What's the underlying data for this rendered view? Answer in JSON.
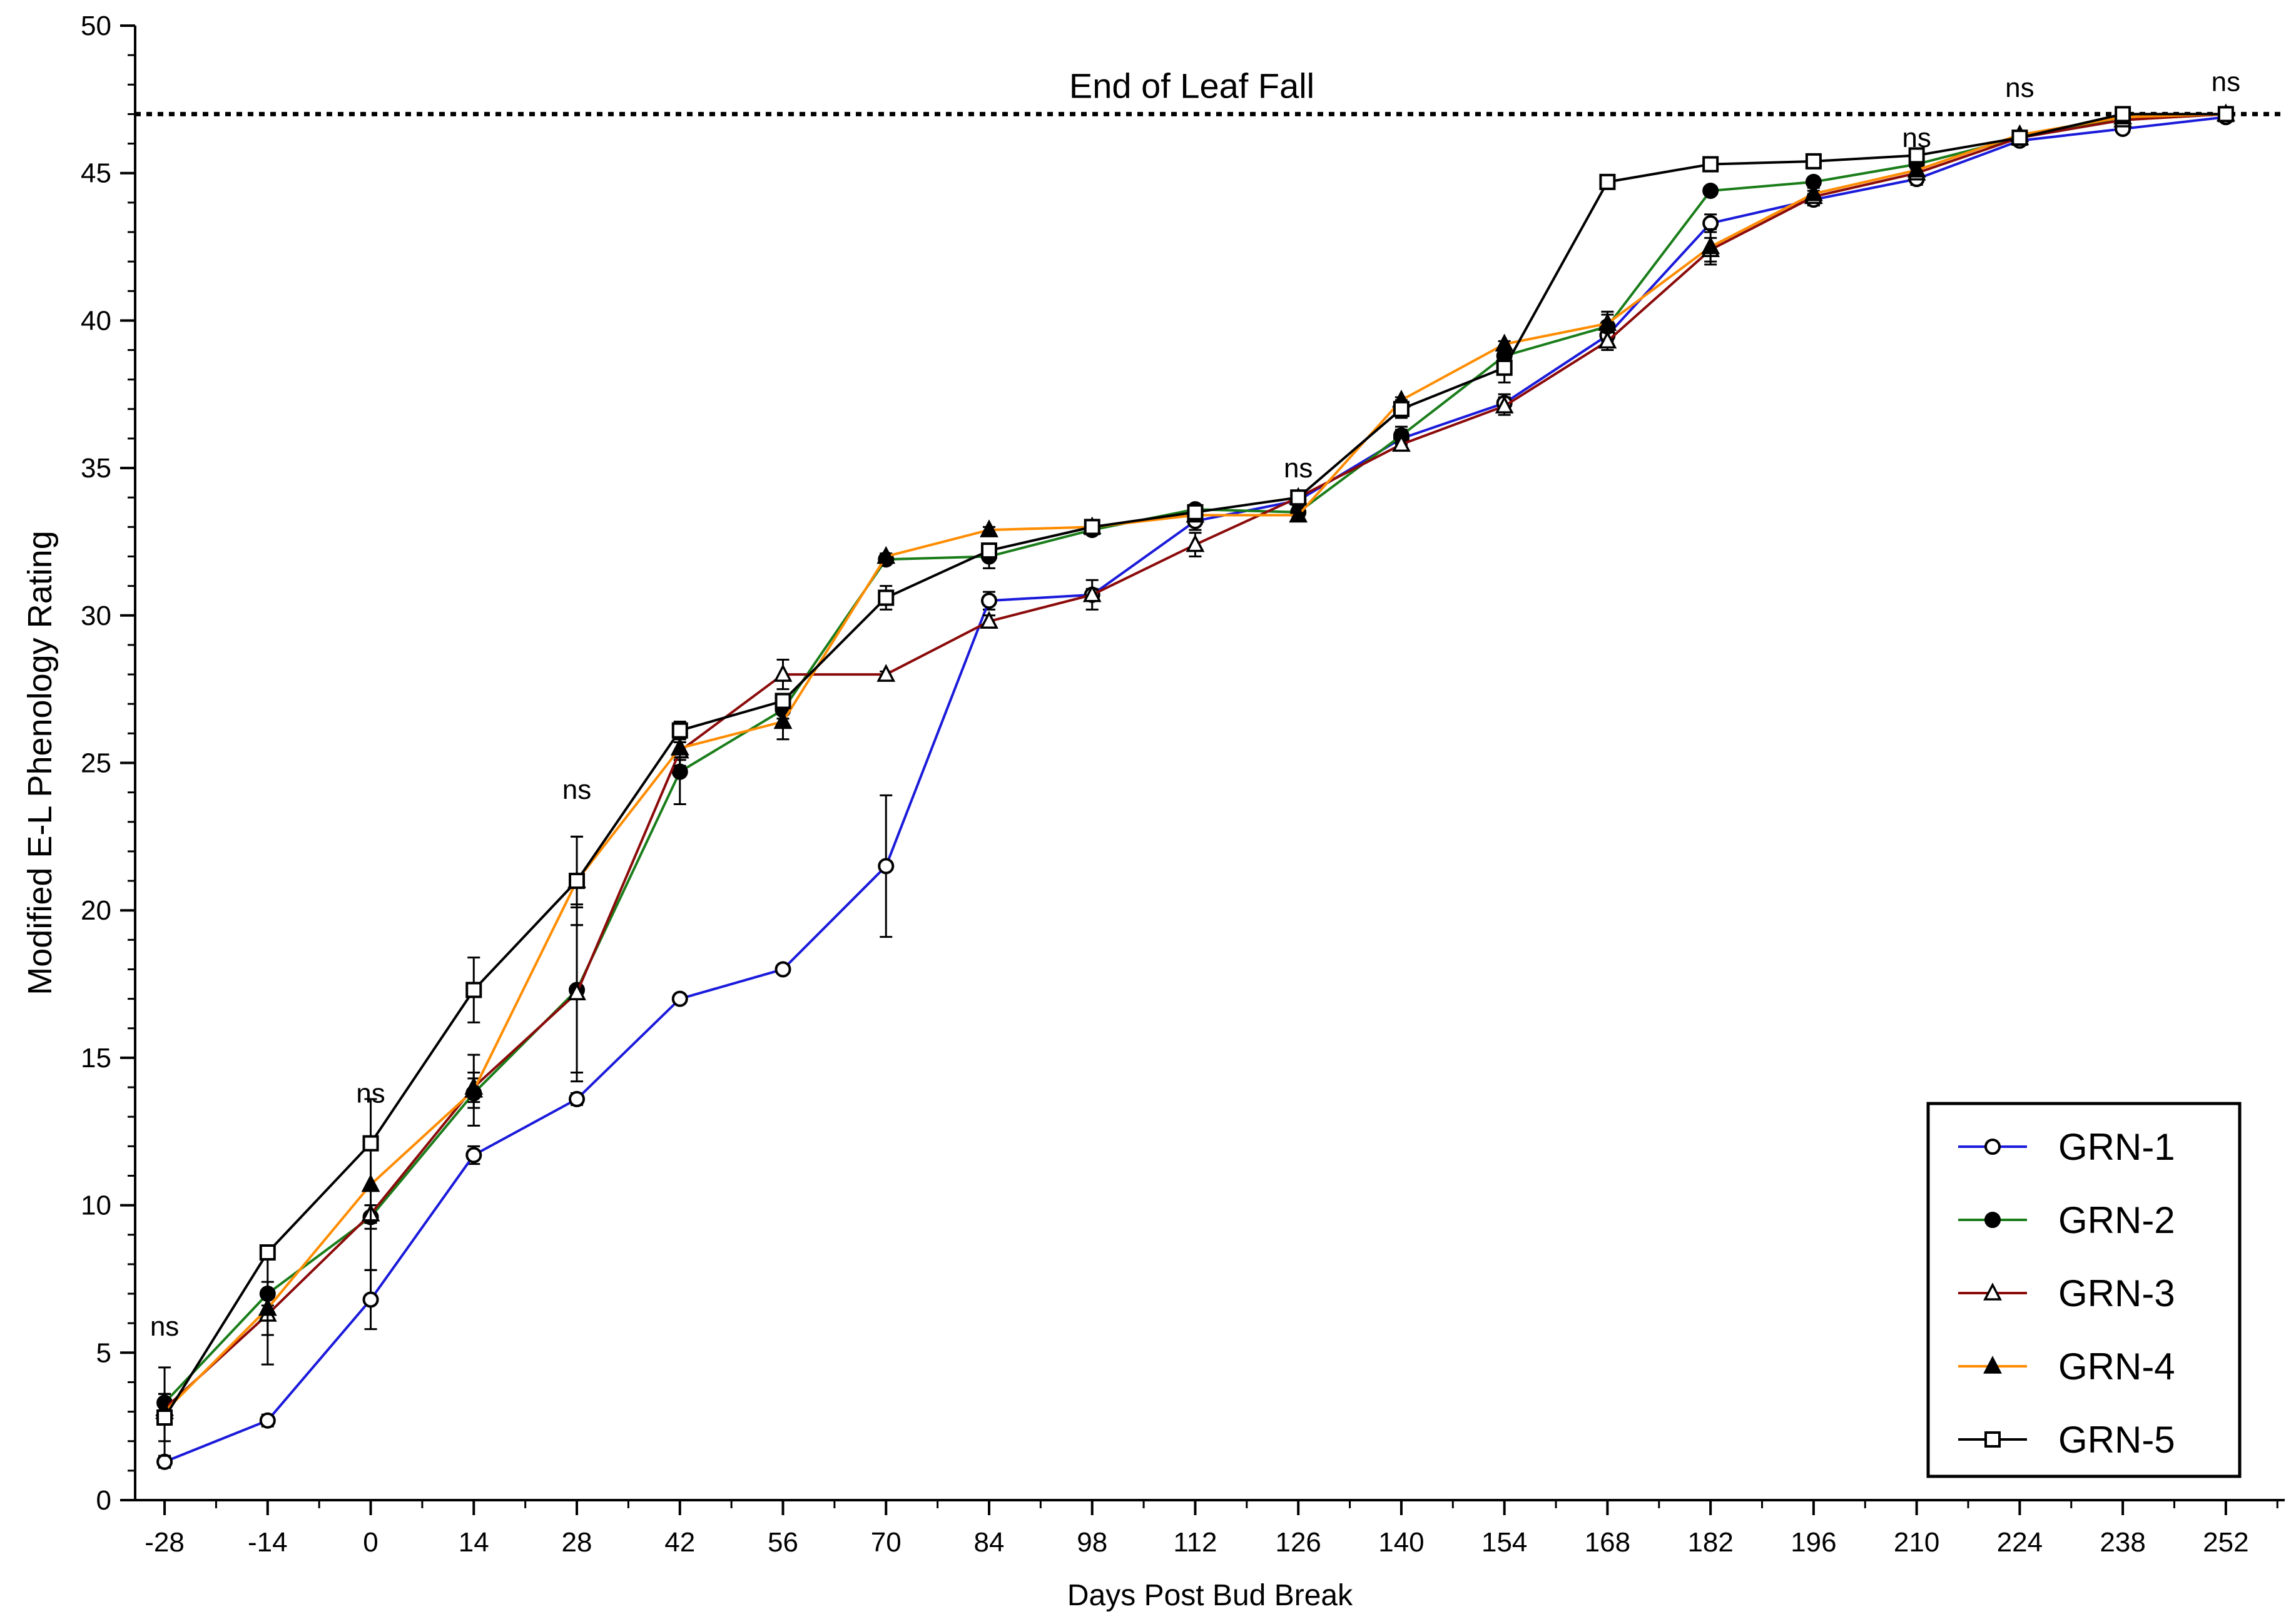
{
  "chart_data": {
    "type": "line",
    "xlabel": "Days Post Bud Break",
    "ylabel": "Modified E-L Phenology Rating",
    "x": [
      -28,
      -14,
      0,
      14,
      28,
      42,
      56,
      70,
      84,
      98,
      112,
      126,
      140,
      154,
      168,
      182,
      196,
      210,
      224,
      238,
      252
    ],
    "x_tick_labels": [
      "-28",
      "-14",
      "0",
      "14",
      "28",
      "42",
      "56",
      "70",
      "84",
      "98",
      "112",
      "126",
      "140",
      "154",
      "168",
      "182",
      "196",
      "210",
      "224",
      "238",
      "252"
    ],
    "xlim": [
      -32,
      260
    ],
    "ylim": [
      0,
      50
    ],
    "y_ticks": [
      0,
      5,
      10,
      15,
      20,
      25,
      30,
      35,
      40,
      45,
      50
    ],
    "y_tick_labels": [
      "0",
      "5",
      "10",
      "15",
      "20",
      "25",
      "30",
      "35",
      "40",
      "45",
      "50"
    ],
    "reference_line": {
      "y": 47,
      "label": "End of Leaf Fall"
    },
    "annotations": [
      {
        "x": -28,
        "y": 5.9,
        "text": "ns"
      },
      {
        "x": 0,
        "y": 13.8,
        "text": "ns"
      },
      {
        "x": 28,
        "y": 24.1,
        "text": "ns"
      },
      {
        "x": 126,
        "y": 35.0,
        "text": "ns"
      },
      {
        "x": 210,
        "y": 46.2,
        "text": "ns"
      },
      {
        "x": 224,
        "y": 47.9,
        "text": "ns"
      },
      {
        "x": 252,
        "y": 48.1,
        "text": "ns"
      }
    ],
    "legend": {
      "position": "bottom-right",
      "entries": [
        "GRN-1",
        "GRN-2",
        "GRN-3",
        "GRN-4",
        "GRN-5"
      ]
    },
    "series": [
      {
        "name": "GRN-1",
        "color": "#1a1adb",
        "marker": "circle-open",
        "values": [
          1.3,
          2.7,
          6.8,
          11.7,
          13.6,
          17.0,
          18.0,
          21.5,
          30.5,
          30.7,
          33.2,
          33.9,
          36.0,
          37.2,
          39.5,
          43.3,
          44.1,
          44.8,
          46.1,
          46.5,
          46.9
        ],
        "errors": [
          0.2,
          0.2,
          1.0,
          0.3,
          0.2,
          0.1,
          0.1,
          2.4,
          0.3,
          0.5,
          0.3,
          0.2,
          0.3,
          0.3,
          0.3,
          0.3,
          0.2,
          0.2,
          0.1,
          0.1,
          0.1
        ]
      },
      {
        "name": "GRN-2",
        "color": "#1a7d1a",
        "marker": "circle-filled",
        "values": [
          3.3,
          7.0,
          9.6,
          13.8,
          17.3,
          24.7,
          26.8,
          31.9,
          32.0,
          32.9,
          33.6,
          33.5,
          36.1,
          38.8,
          39.8,
          44.4,
          44.7,
          45.3,
          46.2,
          46.9,
          47.0
        ],
        "errors": [
          0.3,
          0.4,
          0.4,
          0.5,
          2.8,
          1.1,
          0.3,
          0.1,
          0.4,
          0.1,
          0.1,
          0.1,
          0.3,
          0.3,
          0.5,
          0.1,
          0.1,
          0.2,
          0.1,
          0.1,
          0.1
        ]
      },
      {
        "name": "GRN-3",
        "color": "#8b0a0a",
        "marker": "triangle-open",
        "values": [
          3.1,
          6.3,
          9.7,
          14.0,
          17.2,
          25.4,
          28.0,
          28.0,
          29.8,
          30.7,
          32.4,
          34.0,
          35.8,
          37.1,
          39.3,
          42.4,
          44.2,
          45.0,
          46.2,
          46.8,
          47.0
        ],
        "errors": [
          0.5,
          0.7,
          0.3,
          0.5,
          3.0,
          0.3,
          0.5,
          0.1,
          0.2,
          0.2,
          0.4,
          0.1,
          0.2,
          0.3,
          0.3,
          0.4,
          0.2,
          0.2,
          0.1,
          0.1,
          0.1
        ]
      },
      {
        "name": "GRN-4",
        "color": "#ff8c00",
        "marker": "triangle-filled",
        "values": [
          3.0,
          6.5,
          10.7,
          13.9,
          21.0,
          25.5,
          26.4,
          32.0,
          32.9,
          33.0,
          33.4,
          33.4,
          37.3,
          39.2,
          39.9,
          42.5,
          44.3,
          45.1,
          46.3,
          46.9,
          47.0
        ],
        "errors": [
          1.5,
          1.9,
          2.9,
          1.2,
          1.5,
          0.6,
          0.6,
          0.1,
          0.1,
          0.1,
          0.1,
          0.1,
          0.1,
          0.1,
          0.3,
          0.6,
          0.2,
          0.2,
          0.1,
          0.1,
          0.1
        ]
      },
      {
        "name": "GRN-5",
        "color": "#000000",
        "marker": "square-open",
        "values": [
          2.8,
          8.4,
          12.1,
          17.3,
          21.0,
          26.1,
          27.1,
          30.6,
          32.2,
          33.0,
          33.5,
          34.0,
          37.0,
          38.4,
          44.7,
          45.3,
          45.4,
          45.6,
          46.2,
          47.0,
          47.0
        ],
        "errors": [
          0.8,
          0.1,
          0.2,
          1.1,
          1.5,
          0.3,
          0.2,
          0.4,
          0.1,
          0.1,
          0.1,
          0.1,
          0.3,
          0.5,
          0.1,
          0.1,
          0.1,
          0.1,
          0.1,
          0.1,
          0.1
        ]
      }
    ]
  }
}
